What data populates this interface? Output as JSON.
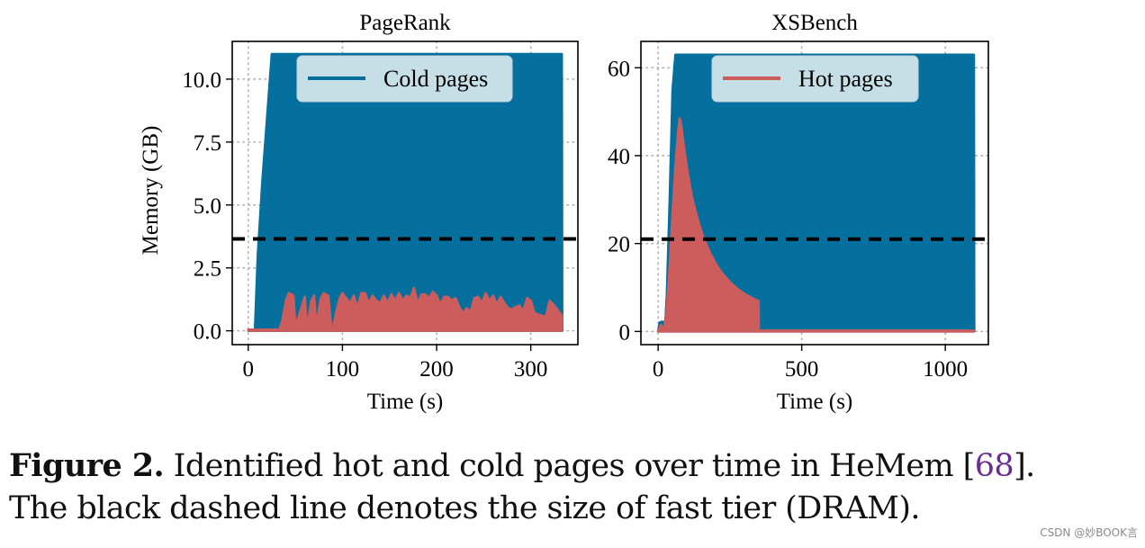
{
  "figure": {
    "caption": {
      "label": "Figure 2.",
      "text_before_ref": " Identified hot and cold pages over time in HeMem ",
      "ref_open": "[",
      "ref": "68",
      "ref_close": "].",
      "line2": "The black dashed line denotes the size of fast tier (DRAM)."
    },
    "watermark": "CSDN @妙BOOK言"
  },
  "colors": {
    "cold": "#05709e",
    "hot": "#cd5c5c",
    "dram_line": "#000000",
    "legend_bg": "#cde3ea",
    "grid": "#b0b0b0"
  },
  "chart_data": [
    {
      "type": "area",
      "title": "PageRank",
      "xlabel": "Time (s)",
      "ylabel": "Memory (GB)",
      "xlim": [
        -17,
        350
      ],
      "ylim": [
        -0.55,
        11.5
      ],
      "xticks": [
        0,
        100,
        200,
        300
      ],
      "xtick_labels": [
        "0",
        "100",
        "200",
        "300"
      ],
      "yticks": [
        0.0,
        2.5,
        5.0,
        7.5,
        10.0
      ],
      "ytick_labels": [
        "0.0",
        "2.5",
        "5.0",
        "7.5",
        "10.0"
      ],
      "grid": true,
      "legend": {
        "entries": [
          "Cold pages"
        ],
        "position": "upper center"
      },
      "dram_size": 3.65,
      "series": [
        {
          "name": "Cold pages",
          "color": "#05709e",
          "x": [
            0,
            7,
            10,
            15,
            20,
            25,
            333,
            333.5
          ],
          "y": [
            0,
            0,
            3.0,
            6.0,
            8.5,
            11.0,
            11.0,
            0
          ]
        },
        {
          "name": "Hot pages",
          "color": "#cd5c5c",
          "x": [
            0,
            33,
            36,
            40,
            43,
            46,
            48,
            50,
            53,
            57,
            60,
            62,
            64,
            67,
            70,
            72,
            74,
            77,
            80,
            82,
            85,
            88,
            90,
            93,
            97,
            100,
            104,
            108,
            112,
            116,
            120,
            124,
            128,
            132,
            136,
            140,
            144,
            148,
            152,
            156,
            160,
            164,
            168,
            172,
            176,
            180,
            184,
            188,
            192,
            196,
            200,
            204,
            208,
            212,
            216,
            220,
            224,
            228,
            232,
            236,
            240,
            244,
            248,
            252,
            256,
            260,
            264,
            268,
            272,
            276,
            280,
            284,
            288,
            292,
            296,
            300,
            304,
            308,
            312,
            316,
            320,
            324,
            328,
            333
          ],
          "y": [
            0.05,
            0.05,
            0.4,
            1.2,
            1.5,
            1.45,
            1.4,
            0.3,
            0.5,
            1.0,
            1.35,
            0.3,
            0.5,
            1.2,
            1.4,
            0.4,
            0.6,
            1.3,
            1.5,
            1.45,
            1.4,
            0.2,
            0.1,
            0.7,
            1.3,
            1.5,
            1.3,
            1.1,
            1.4,
            0.9,
            1.5,
            1.5,
            1.1,
            1.4,
            1.2,
            1.1,
            1.4,
            1.1,
            1.45,
            1.2,
            1.5,
            1.2,
            1.4,
            1.3,
            1.7,
            1.1,
            1.45,
            1.45,
            1.3,
            1.55,
            1.4,
            1.05,
            1.35,
            1.35,
            1.2,
            1.3,
            0.95,
            0.7,
            0.9,
            0.75,
            1.3,
            1.35,
            1.1,
            1.5,
            1.2,
            1.4,
            1.05,
            1.35,
            1.1,
            0.9,
            0.85,
            0.95,
            1.0,
            0.8,
            1.3,
            1.2,
            0.7,
            0.65,
            0.6,
            0.55,
            1.2,
            1.05,
            0.85,
            0.6
          ]
        }
      ]
    },
    {
      "type": "area",
      "title": "XSBench",
      "xlabel": "Time (s)",
      "ylabel": "",
      "xlim": [
        -60,
        1150
      ],
      "ylim": [
        -3,
        66
      ],
      "xticks": [
        0,
        500,
        1000
      ],
      "xtick_labels": [
        "0",
        "500",
        "1000"
      ],
      "yticks": [
        0,
        20,
        40,
        60
      ],
      "ytick_labels": [
        "0",
        "20",
        "40",
        "60"
      ],
      "grid": true,
      "legend": {
        "entries": [
          "Hot pages"
        ],
        "position": "upper center"
      },
      "dram_size": 21,
      "series": [
        {
          "name": "Cold pages",
          "color": "#05709e",
          "x": [
            0,
            5,
            10,
            25,
            30,
            40,
            50,
            60,
            1100,
            1101
          ],
          "y": [
            0,
            2,
            2.2,
            2.2,
            8,
            30,
            55,
            63,
            63,
            0
          ]
        },
        {
          "name": "Hot pages",
          "color": "#cd5c5c",
          "x": [
            0,
            10,
            20,
            30,
            40,
            50,
            60,
            70,
            75,
            80,
            90,
            100,
            110,
            120,
            140,
            160,
            180,
            200,
            220,
            240,
            260,
            280,
            300,
            320,
            340,
            350,
            351,
            1100
          ],
          "y": [
            0,
            1.5,
            0.5,
            5,
            15,
            27,
            38,
            46,
            48.5,
            47,
            42,
            37.5,
            33.5,
            30,
            25,
            21,
            18,
            15.5,
            13.5,
            12,
            10.6,
            9.5,
            8.6,
            7.9,
            7.2,
            7.0,
            0.2,
            0.2
          ]
        }
      ]
    }
  ]
}
